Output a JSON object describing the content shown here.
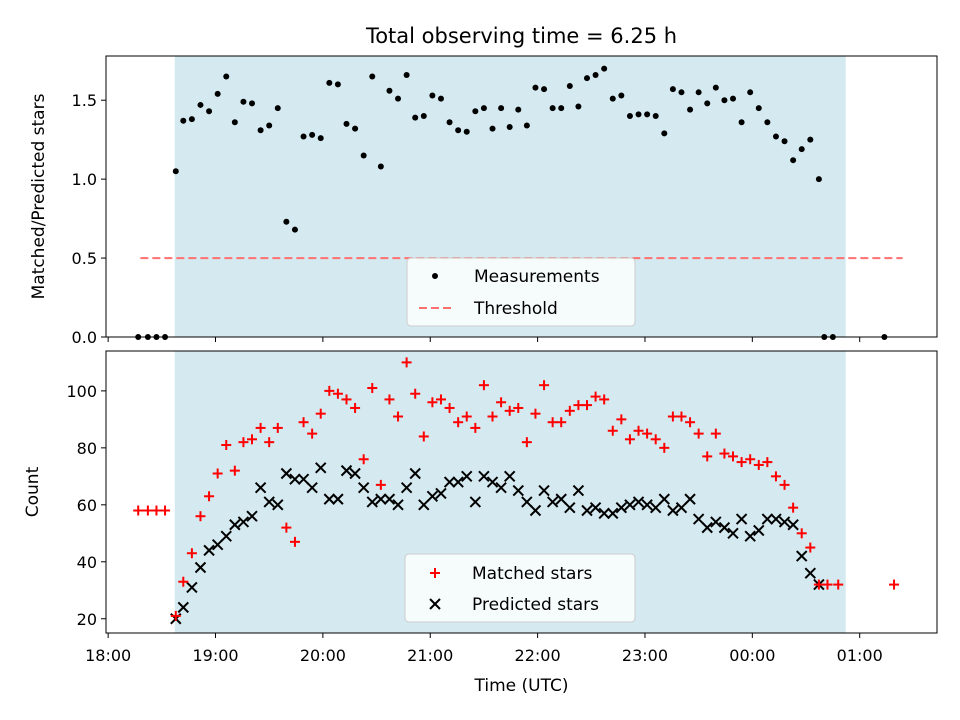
{
  "chart_data": [
    {
      "type": "scatter",
      "title": "Total observing time = 6.25 h",
      "ylabel": "Matched/Predicted stars",
      "xlabel": "",
      "xlim_hours": [
        17.98,
        25.72
      ],
      "ylim": [
        0,
        1.78
      ],
      "yticks": [
        0.0,
        0.5,
        1.0,
        1.5
      ],
      "ytick_labels": [
        "0.0",
        "0.5",
        "1.0",
        "1.5"
      ],
      "shaded_region_hours": [
        18.62,
        24.87
      ],
      "shaded_color": "#d4eaf0",
      "legend": {
        "placement": "lower center",
        "entries": [
          {
            "label": "Measurements",
            "marker": "dot",
            "color": "#000000"
          },
          {
            "label": "Threshold",
            "marker": "dashed-line",
            "color": "#ff7070"
          }
        ]
      },
      "threshold": {
        "y": 0.5,
        "x_range_hours": [
          18.3,
          25.4
        ],
        "color": "#ff7070"
      },
      "series": [
        {
          "name": "Measurements",
          "color": "#000000",
          "points": [
            [
              18.28,
              0.0
            ],
            [
              18.37,
              0.0
            ],
            [
              18.45,
              0.0
            ],
            [
              18.53,
              0.0
            ],
            [
              18.63,
              1.05
            ],
            [
              18.7,
              1.37
            ],
            [
              18.78,
              1.38
            ],
            [
              18.86,
              1.47
            ],
            [
              18.94,
              1.43
            ],
            [
              19.02,
              1.54
            ],
            [
              19.1,
              1.65
            ],
            [
              19.18,
              1.36
            ],
            [
              19.26,
              1.49
            ],
            [
              19.34,
              1.48
            ],
            [
              19.42,
              1.31
            ],
            [
              19.5,
              1.34
            ],
            [
              19.58,
              1.45
            ],
            [
              19.66,
              0.73
            ],
            [
              19.74,
              0.68
            ],
            [
              19.82,
              1.27
            ],
            [
              19.9,
              1.28
            ],
            [
              19.98,
              1.26
            ],
            [
              20.06,
              1.61
            ],
            [
              20.14,
              1.6
            ],
            [
              20.22,
              1.35
            ],
            [
              20.3,
              1.32
            ],
            [
              20.38,
              1.15
            ],
            [
              20.46,
              1.65
            ],
            [
              20.54,
              1.08
            ],
            [
              20.62,
              1.56
            ],
            [
              20.7,
              1.51
            ],
            [
              20.78,
              1.66
            ],
            [
              20.86,
              1.39
            ],
            [
              20.94,
              1.4
            ],
            [
              21.02,
              1.53
            ],
            [
              21.1,
              1.51
            ],
            [
              21.18,
              1.36
            ],
            [
              21.26,
              1.31
            ],
            [
              21.34,
              1.3
            ],
            [
              21.42,
              1.43
            ],
            [
              21.5,
              1.45
            ],
            [
              21.58,
              1.32
            ],
            [
              21.66,
              1.45
            ],
            [
              21.74,
              1.33
            ],
            [
              21.82,
              1.44
            ],
            [
              21.9,
              1.34
            ],
            [
              21.98,
              1.58
            ],
            [
              22.06,
              1.57
            ],
            [
              22.14,
              1.45
            ],
            [
              22.22,
              1.45
            ],
            [
              22.3,
              1.59
            ],
            [
              22.38,
              1.46
            ],
            [
              22.46,
              1.64
            ],
            [
              22.54,
              1.66
            ],
            [
              22.62,
              1.7
            ],
            [
              22.7,
              1.51
            ],
            [
              22.78,
              1.53
            ],
            [
              22.86,
              1.4
            ],
            [
              22.94,
              1.41
            ],
            [
              23.02,
              1.41
            ],
            [
              23.1,
              1.4
            ],
            [
              23.18,
              1.29
            ],
            [
              23.26,
              1.57
            ],
            [
              23.34,
              1.55
            ],
            [
              23.42,
              1.44
            ],
            [
              23.5,
              1.55
            ],
            [
              23.58,
              1.48
            ],
            [
              23.66,
              1.58
            ],
            [
              23.74,
              1.5
            ],
            [
              23.82,
              1.51
            ],
            [
              23.9,
              1.36
            ],
            [
              23.98,
              1.55
            ],
            [
              24.06,
              1.45
            ],
            [
              24.14,
              1.36
            ],
            [
              24.22,
              1.27
            ],
            [
              24.3,
              1.24
            ],
            [
              24.38,
              1.12
            ],
            [
              24.46,
              1.19
            ],
            [
              24.54,
              1.25
            ],
            [
              24.62,
              1.0
            ],
            [
              24.67,
              0.0
            ],
            [
              24.75,
              0.0
            ],
            [
              25.23,
              0.0
            ]
          ]
        }
      ]
    },
    {
      "type": "scatter",
      "ylabel": "Count",
      "xlabel": "Time (UTC)",
      "xlim_hours": [
        17.98,
        25.72
      ],
      "ylim": [
        15,
        114
      ],
      "yticks": [
        20,
        40,
        60,
        80,
        100
      ],
      "ytick_labels": [
        "20",
        "40",
        "60",
        "80",
        "100"
      ],
      "xticks_hours": [
        18,
        19,
        20,
        21,
        22,
        23,
        24,
        25
      ],
      "xtick_labels": [
        "18:00",
        "19:00",
        "20:00",
        "21:00",
        "22:00",
        "23:00",
        "00:00",
        "01:00"
      ],
      "shaded_region_hours": [
        18.62,
        24.87
      ],
      "shaded_color": "#d4eaf0",
      "legend": {
        "placement": "lower center",
        "entries": [
          {
            "label": "Matched stars",
            "marker": "plus",
            "color": "#ff0000"
          },
          {
            "label": "Predicted stars",
            "marker": "x",
            "color": "#000000"
          }
        ]
      },
      "series": [
        {
          "name": "Matched stars",
          "marker": "plus",
          "color": "#ff0000",
          "points": [
            [
              18.28,
              58
            ],
            [
              18.37,
              58
            ],
            [
              18.45,
              58
            ],
            [
              18.53,
              58
            ],
            [
              18.63,
              21
            ],
            [
              18.7,
              33
            ],
            [
              18.78,
              43
            ],
            [
              18.86,
              56
            ],
            [
              18.94,
              63
            ],
            [
              19.02,
              71
            ],
            [
              19.1,
              81
            ],
            [
              19.18,
              72
            ],
            [
              19.26,
              82
            ],
            [
              19.34,
              83
            ],
            [
              19.42,
              87
            ],
            [
              19.5,
              82
            ],
            [
              19.58,
              87
            ],
            [
              19.66,
              52
            ],
            [
              19.74,
              47
            ],
            [
              19.82,
              89
            ],
            [
              19.9,
              85
            ],
            [
              19.98,
              92
            ],
            [
              20.06,
              100
            ],
            [
              20.14,
              99
            ],
            [
              20.22,
              97
            ],
            [
              20.3,
              94
            ],
            [
              20.38,
              76
            ],
            [
              20.46,
              101
            ],
            [
              20.54,
              67
            ],
            [
              20.62,
              97
            ],
            [
              20.7,
              91
            ],
            [
              20.78,
              110
            ],
            [
              20.86,
              99
            ],
            [
              20.94,
              84
            ],
            [
              21.02,
              96
            ],
            [
              21.1,
              97
            ],
            [
              21.18,
              94
            ],
            [
              21.26,
              89
            ],
            [
              21.34,
              91
            ],
            [
              21.42,
              87
            ],
            [
              21.5,
              102
            ],
            [
              21.58,
              91
            ],
            [
              21.66,
              96
            ],
            [
              21.74,
              93
            ],
            [
              21.82,
              94
            ],
            [
              21.9,
              82
            ],
            [
              21.98,
              92
            ],
            [
              22.06,
              102
            ],
            [
              22.14,
              89
            ],
            [
              22.22,
              89
            ],
            [
              22.3,
              93
            ],
            [
              22.38,
              95
            ],
            [
              22.46,
              95
            ],
            [
              22.54,
              98
            ],
            [
              22.62,
              97
            ],
            [
              22.7,
              86
            ],
            [
              22.78,
              90
            ],
            [
              22.86,
              83
            ],
            [
              22.94,
              86
            ],
            [
              23.02,
              85
            ],
            [
              23.1,
              83
            ],
            [
              23.18,
              80
            ],
            [
              23.26,
              91
            ],
            [
              23.34,
              91
            ],
            [
              23.42,
              89
            ],
            [
              23.5,
              85
            ],
            [
              23.58,
              77
            ],
            [
              23.66,
              85
            ],
            [
              23.74,
              78
            ],
            [
              23.82,
              77
            ],
            [
              23.9,
              75
            ],
            [
              23.98,
              76
            ],
            [
              24.06,
              74
            ],
            [
              24.14,
              75
            ],
            [
              24.22,
              70
            ],
            [
              24.3,
              67
            ],
            [
              24.38,
              59
            ],
            [
              24.46,
              50
            ],
            [
              24.54,
              45
            ],
            [
              24.62,
              32
            ],
            [
              24.7,
              32
            ],
            [
              24.8,
              32
            ],
            [
              25.32,
              32
            ]
          ]
        },
        {
          "name": "Predicted stars",
          "marker": "x",
          "color": "#000000",
          "points": [
            [
              18.63,
              20
            ],
            [
              18.7,
              24
            ],
            [
              18.78,
              31
            ],
            [
              18.86,
              38
            ],
            [
              18.94,
              44
            ],
            [
              19.02,
              46
            ],
            [
              19.1,
              49
            ],
            [
              19.18,
              53
            ],
            [
              19.26,
              54
            ],
            [
              19.34,
              56
            ],
            [
              19.42,
              66
            ],
            [
              19.5,
              61
            ],
            [
              19.58,
              60
            ],
            [
              19.66,
              71
            ],
            [
              19.74,
              69
            ],
            [
              19.82,
              69
            ],
            [
              19.9,
              66
            ],
            [
              19.98,
              73
            ],
            [
              20.06,
              62
            ],
            [
              20.14,
              62
            ],
            [
              20.22,
              72
            ],
            [
              20.3,
              71
            ],
            [
              20.38,
              66
            ],
            [
              20.46,
              61
            ],
            [
              20.54,
              62
            ],
            [
              20.62,
              62
            ],
            [
              20.7,
              60
            ],
            [
              20.78,
              66
            ],
            [
              20.86,
              71
            ],
            [
              20.94,
              60
            ],
            [
              21.02,
              63
            ],
            [
              21.1,
              64
            ],
            [
              21.18,
              68
            ],
            [
              21.26,
              68
            ],
            [
              21.34,
              70
            ],
            [
              21.42,
              61
            ],
            [
              21.5,
              70
            ],
            [
              21.58,
              68
            ],
            [
              21.66,
              66
            ],
            [
              21.74,
              70
            ],
            [
              21.82,
              65
            ],
            [
              21.9,
              61
            ],
            [
              21.98,
              58
            ],
            [
              22.06,
              65
            ],
            [
              22.14,
              61
            ],
            [
              22.22,
              62
            ],
            [
              22.3,
              59
            ],
            [
              22.38,
              65
            ],
            [
              22.46,
              58
            ],
            [
              22.54,
              59
            ],
            [
              22.62,
              57
            ],
            [
              22.7,
              57
            ],
            [
              22.78,
              59
            ],
            [
              22.86,
              60
            ],
            [
              22.94,
              61
            ],
            [
              23.02,
              60
            ],
            [
              23.1,
              59
            ],
            [
              23.18,
              62
            ],
            [
              23.26,
              58
            ],
            [
              23.34,
              59
            ],
            [
              23.42,
              62
            ],
            [
              23.5,
              55
            ],
            [
              23.58,
              52
            ],
            [
              23.66,
              54
            ],
            [
              23.74,
              52
            ],
            [
              23.82,
              50
            ],
            [
              23.9,
              55
            ],
            [
              23.98,
              49
            ],
            [
              24.06,
              51
            ],
            [
              24.14,
              55
            ],
            [
              24.22,
              55
            ],
            [
              24.3,
              54
            ],
            [
              24.38,
              53
            ],
            [
              24.46,
              42
            ],
            [
              24.54,
              36
            ],
            [
              24.62,
              32
            ]
          ]
        }
      ]
    }
  ]
}
